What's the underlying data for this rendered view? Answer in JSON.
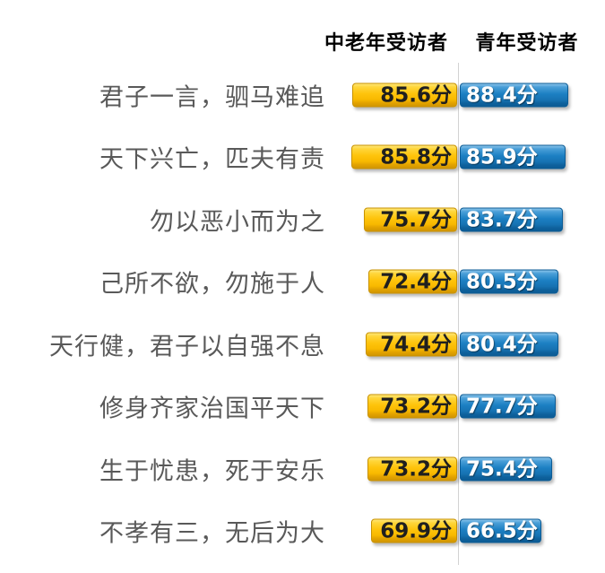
{
  "header": {
    "left": "中老年受访者",
    "right": "青年受访者"
  },
  "colors": {
    "elder_bar": "#FEC30B",
    "elder_bar_dark": "#D29600",
    "youth_bar": "#1C80C3",
    "youth_bar_dark": "#0C5B95",
    "label_gray": "#595959",
    "divider_gray": "#D2D2D2",
    "header_black": "#000000"
  },
  "chart_data": {
    "type": "bar",
    "orientation": "horizontal-diverging",
    "title": "",
    "unit_suffix": "分",
    "categories": [
      "君子一言，驷马难追",
      "天下兴亡，匹夫有责",
      "勿以恶小而为之",
      "己所不欲，勿施于人",
      "天行健，君子以自强不息",
      "修身齐家治国平天下",
      "生于忧患，死于安乐",
      "不孝有三，无后为大"
    ],
    "series": [
      {
        "name": "中老年受访者",
        "color": "#FEC30B",
        "values": [
          85.6,
          85.8,
          75.7,
          72.4,
          74.4,
          73.2,
          73.2,
          69.9
        ]
      },
      {
        "name": "青年受访者",
        "color": "#1C80C3",
        "values": [
          88.4,
          85.9,
          83.7,
          80.5,
          80.4,
          77.7,
          75.4,
          66.5
        ]
      }
    ],
    "value_range": [
      0,
      100
    ],
    "legend_position": "top",
    "grid": false
  }
}
